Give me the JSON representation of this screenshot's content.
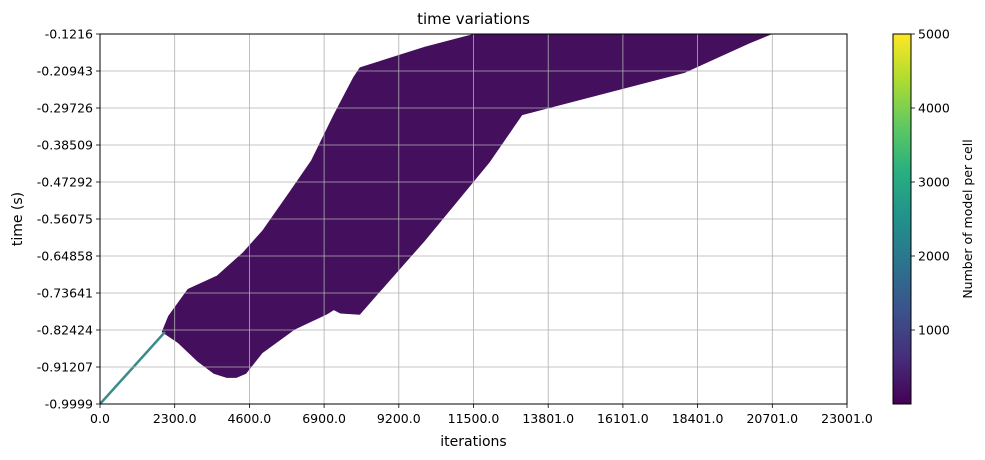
{
  "chart_data": {
    "type": "heatmap",
    "title": "time variations",
    "xlabel": "iterations",
    "ylabel": "time (s)",
    "xlim": [
      0.0,
      23001.0
    ],
    "ylim": [
      -0.9999,
      -0.1216
    ],
    "x_ticks": [
      "0.0",
      "2300.0",
      "4600.0",
      "6900.0",
      "9200.0",
      "11500.0",
      "13801.0",
      "16101.0",
      "18401.0",
      "20701.0",
      "23001.0"
    ],
    "y_ticks": [
      "-0.1216",
      "-0.20943",
      "-0.29726",
      "-0.38509",
      "-0.47292",
      "-0.56075",
      "-0.64858",
      "-0.73641",
      "-0.82424",
      "-0.91207",
      "-0.9999"
    ],
    "grid": true,
    "colorbar": {
      "label": "Number of model per cell",
      "range": [
        0,
        5000
      ],
      "ticks": [
        "1000",
        "2000",
        "3000",
        "4000",
        "5000"
      ],
      "colormap": "viridis"
    },
    "region_color": "#440f5c",
    "line_color": "#3b8a8c",
    "line": {
      "x": [
        0,
        2000
      ],
      "y": [
        -0.9999,
        -0.829
      ]
    },
    "region": {
      "x": [
        1900,
        2400,
        3000,
        3500,
        3900,
        4200,
        4500,
        5000,
        6000,
        7000,
        7200,
        7400,
        8000,
        9000,
        10000,
        11000,
        12000,
        12500,
        13000,
        14000,
        16000,
        18000,
        20000,
        20700,
        20500,
        18000,
        14000,
        11500,
        10000,
        8000,
        7800,
        7200,
        6500,
        5800,
        5000,
        4400,
        3600,
        2700,
        2100,
        1900
      ],
      "y": [
        -0.829,
        -0.855,
        -0.899,
        -0.928,
        -0.938,
        -0.938,
        -0.928,
        -0.879,
        -0.823,
        -0.787,
        -0.777,
        -0.785,
        -0.788,
        -0.7,
        -0.613,
        -0.52,
        -0.426,
        -0.37,
        -0.314,
        -0.294,
        -0.254,
        -0.214,
        -0.144,
        -0.1216,
        -0.1216,
        -0.1216,
        -0.1216,
        -0.1216,
        -0.152,
        -0.201,
        -0.224,
        -0.312,
        -0.422,
        -0.5,
        -0.588,
        -0.64,
        -0.695,
        -0.727,
        -0.791,
        -0.829
      ]
    }
  }
}
